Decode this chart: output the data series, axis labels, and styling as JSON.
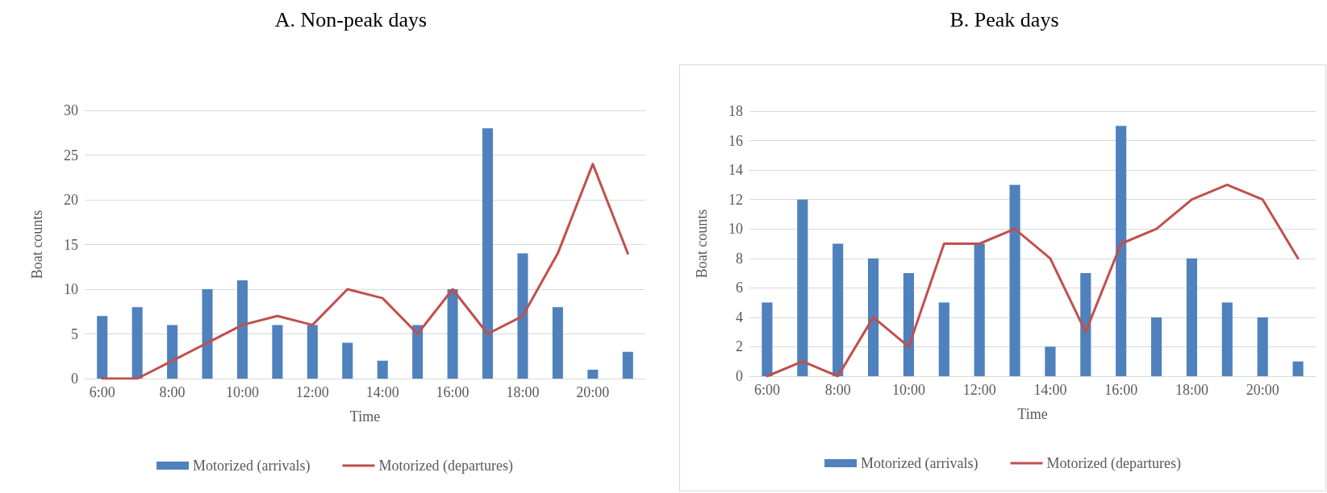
{
  "chart_data": [
    {
      "type": "bar",
      "title": "A.  Non-peak days",
      "xlabel": "Time",
      "ylabel": "Boat counts",
      "categories": [
        "6:00",
        null,
        "8:00",
        null,
        "10:00",
        null,
        "12:00",
        null,
        "14:00",
        null,
        "16:00",
        null,
        "18:00",
        null,
        "20:00",
        null
      ],
      "series": [
        {
          "name": "Motorized (arrivals)",
          "color": "#4f81bd",
          "values": [
            7,
            8,
            6,
            10,
            11,
            6,
            6,
            4,
            2,
            6,
            10,
            28,
            14,
            8,
            1,
            3
          ]
        },
        {
          "name": "Motorized (departures)",
          "type": "line",
          "color": "#c0504d",
          "values": [
            0,
            0,
            2,
            4,
            6,
            7,
            6,
            10,
            9,
            5,
            10,
            5,
            7,
            14,
            24,
            14
          ]
        }
      ],
      "ylim": [
        0,
        30
      ],
      "yticks": [
        0,
        5,
        10,
        15,
        20,
        25,
        30
      ],
      "grid": "y",
      "legend": "bottom",
      "marker": "none"
    },
    {
      "type": "bar",
      "title": "B.  Peak days",
      "xlabel": "Time",
      "ylabel": "Boat counts",
      "categories": [
        "6:00",
        null,
        "8:00",
        null,
        "10:00",
        null,
        "12:00",
        null,
        "14:00",
        null,
        "16:00",
        null,
        "18:00",
        null,
        "20:00",
        null
      ],
      "series": [
        {
          "name": "Motorized (arrivals)",
          "color": "#4f81bd",
          "values": [
            5,
            12,
            9,
            8,
            7,
            5,
            9,
            13,
            2,
            7,
            17,
            4,
            8,
            5,
            4,
            1
          ]
        },
        {
          "name": "Motorized (departures)",
          "type": "line",
          "color": "#c0504d",
          "values": [
            0,
            1,
            0,
            4,
            2,
            9,
            9,
            10,
            8,
            3,
            9,
            10,
            12,
            13,
            12,
            8
          ]
        }
      ],
      "ylim": [
        0,
        18
      ],
      "yticks": [
        0,
        2,
        4,
        6,
        8,
        10,
        12,
        14,
        16,
        18
      ],
      "grid": "y",
      "legend": "bottom",
      "marker": "none"
    }
  ]
}
